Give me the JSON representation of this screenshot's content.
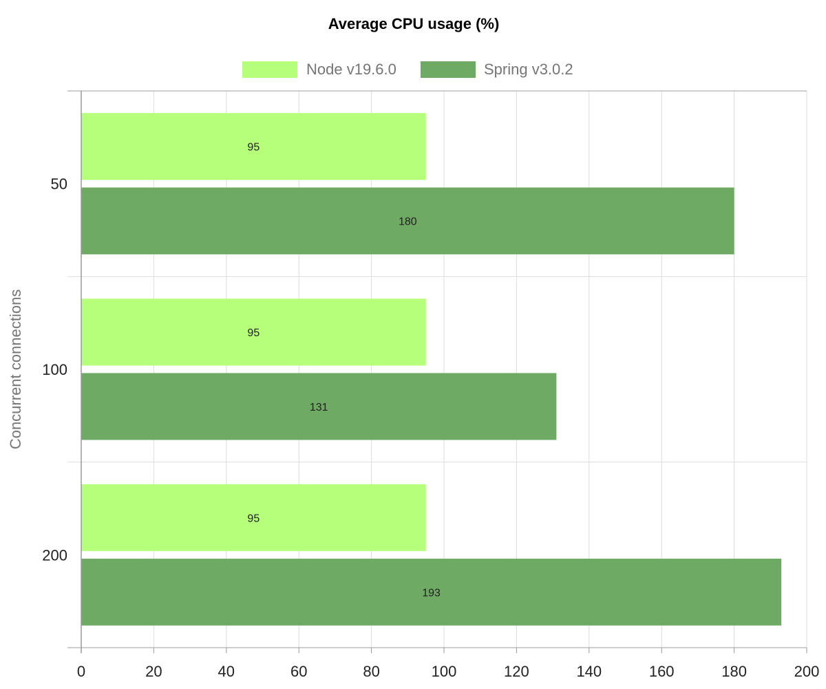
{
  "chart_data": {
    "type": "bar",
    "orientation": "horizontal",
    "title": "Average CPU usage (%)",
    "ylabel": "Concurrent connections",
    "xlabel": "",
    "categories": [
      "50",
      "100",
      "200"
    ],
    "series": [
      {
        "name": "Node v19.6.0",
        "values": [
          95,
          95,
          95
        ],
        "color": "#b5ff7a"
      },
      {
        "name": "Spring v3.0.2",
        "values": [
          180,
          131,
          193
        ],
        "color": "#6eaa63"
      }
    ],
    "xlim": [
      0,
      200
    ],
    "xticks": [
      "0",
      "20",
      "40",
      "60",
      "80",
      "100",
      "120",
      "140",
      "160",
      "180",
      "200"
    ],
    "grid": true,
    "legend_position": "top"
  }
}
